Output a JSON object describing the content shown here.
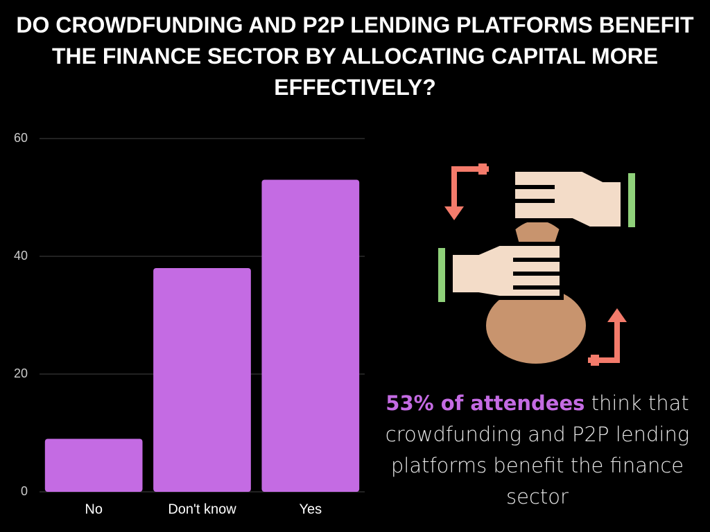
{
  "chart_data": {
    "type": "bar",
    "title": "DO CROWDFUNDING AND P2P LENDING PLATFORMS BENEFIT THE FINANCE SECTOR BY ALLOCATING CAPITAL MORE EFFECTIVELY?",
    "categories": [
      "No",
      "Don't know",
      "Yes"
    ],
    "values": [
      9,
      38,
      53
    ],
    "color": "#c46be3",
    "ylim": [
      0,
      60
    ],
    "yticks": [
      0,
      20,
      40,
      60
    ],
    "grid": true,
    "annotation": {
      "highlight": "53% of attendees",
      "text": "think that crowdfunding and P2P lending platforms benefit the finance sector"
    }
  }
}
